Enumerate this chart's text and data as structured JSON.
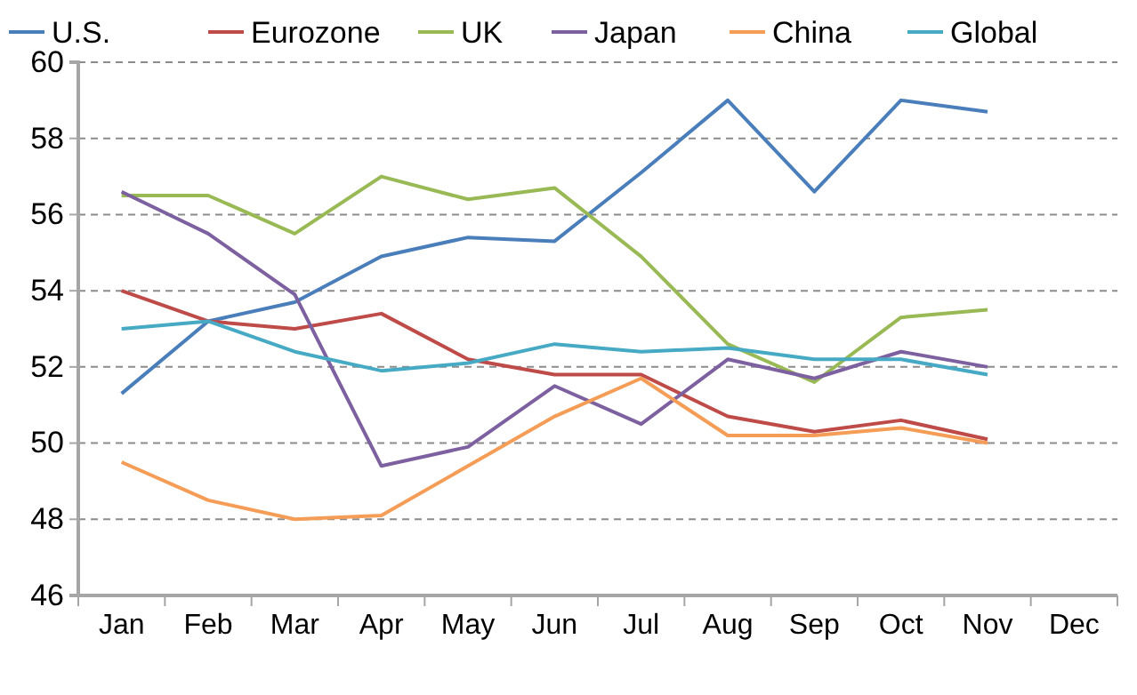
{
  "chart_data": {
    "type": "line",
    "categories": [
      "Jan",
      "Feb",
      "Mar",
      "Apr",
      "May",
      "Jun",
      "Jul",
      "Aug",
      "Sep",
      "Oct",
      "Nov",
      "Dec"
    ],
    "series": [
      {
        "name": "U.S.",
        "color": "#4a7ebb",
        "values": [
          51.3,
          53.2,
          53.7,
          54.9,
          55.4,
          55.3,
          57.1,
          59.0,
          56.6,
          59.0,
          58.7,
          null
        ]
      },
      {
        "name": "Eurozone",
        "color": "#be4b48",
        "values": [
          54.0,
          53.2,
          53.0,
          53.4,
          52.2,
          51.8,
          51.8,
          50.7,
          50.3,
          50.6,
          50.1,
          null
        ]
      },
      {
        "name": "UK",
        "color": "#98b954",
        "values": [
          56.5,
          56.5,
          55.5,
          57.0,
          56.4,
          56.7,
          54.9,
          52.6,
          51.6,
          53.3,
          53.5,
          null
        ]
      },
      {
        "name": "Japan",
        "color": "#7d60a0",
        "values": [
          56.6,
          55.5,
          53.9,
          49.4,
          49.9,
          51.5,
          50.5,
          52.2,
          51.7,
          52.4,
          52.0,
          null
        ]
      },
      {
        "name": "China",
        "color": "#f59d56",
        "values": [
          49.5,
          48.5,
          48.0,
          48.1,
          49.4,
          50.7,
          51.7,
          50.2,
          50.2,
          50.4,
          50.0,
          null
        ]
      },
      {
        "name": "Global",
        "color": "#46aac5",
        "values": [
          53.0,
          53.2,
          52.4,
          51.9,
          52.1,
          52.6,
          52.4,
          52.5,
          52.2,
          52.2,
          51.8,
          null
        ]
      }
    ],
    "ylim": [
      46,
      60
    ],
    "yticks": [
      46,
      48,
      50,
      52,
      54,
      56,
      58,
      60
    ],
    "grid": "y",
    "legend": "top",
    "marker": "none",
    "line_style": "solid"
  }
}
